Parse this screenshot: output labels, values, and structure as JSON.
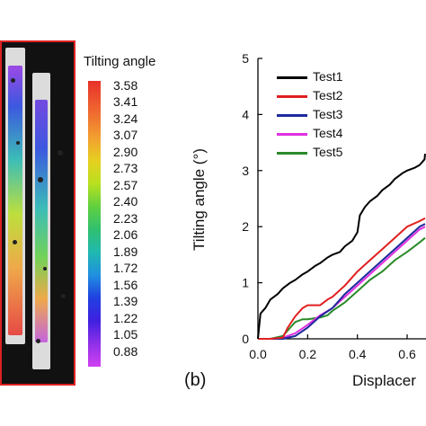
{
  "panel_a": {
    "legend_title": "Tilting angle",
    "colorbar_values": [
      "3.58",
      "3.41",
      "3.24",
      "3.07",
      "2.90",
      "2.73",
      "2.57",
      "2.40",
      "2.23",
      "2.06",
      "1.89",
      "1.72",
      "1.56",
      "1.39",
      "1.22",
      "1.05",
      "0.88"
    ]
  },
  "panel_b_label": "(b)",
  "chart_data": {
    "type": "line",
    "xlabel": "Displacer",
    "ylabel": "Tilting angle (°)",
    "xlim": [
      0.0,
      0.7
    ],
    "ylim": [
      0,
      5
    ],
    "xticks": [
      "0.0",
      "0.2",
      "0.4",
      "0.6"
    ],
    "yticks": [
      "0",
      "1",
      "2",
      "3",
      "4",
      "5"
    ],
    "legend_position": "top-left",
    "series": [
      {
        "name": "Test1",
        "color": "#000000",
        "x": [
          0.0,
          0.01,
          0.03,
          0.05,
          0.08,
          0.1,
          0.13,
          0.15,
          0.18,
          0.2,
          0.23,
          0.25,
          0.28,
          0.3,
          0.33,
          0.35,
          0.38,
          0.4,
          0.41,
          0.43,
          0.45,
          0.48,
          0.5,
          0.53,
          0.55,
          0.58,
          0.6,
          0.63,
          0.65,
          0.67,
          0.7
        ],
        "y": [
          0.0,
          0.45,
          0.55,
          0.7,
          0.8,
          0.9,
          1.0,
          1.05,
          1.15,
          1.2,
          1.3,
          1.35,
          1.45,
          1.5,
          1.55,
          1.65,
          1.75,
          1.9,
          2.2,
          2.35,
          2.45,
          2.55,
          2.65,
          2.75,
          2.85,
          2.95,
          3.0,
          3.05,
          3.1,
          3.2,
          3.3
        ]
      },
      {
        "name": "Test2",
        "color": "#e02020",
        "x": [
          0.0,
          0.05,
          0.1,
          0.12,
          0.15,
          0.18,
          0.2,
          0.25,
          0.28,
          0.3,
          0.35,
          0.4,
          0.45,
          0.5,
          0.55,
          0.6,
          0.65,
          0.7
        ],
        "y": [
          0.0,
          0.0,
          0.02,
          0.2,
          0.4,
          0.55,
          0.6,
          0.6,
          0.7,
          0.75,
          0.95,
          1.2,
          1.4,
          1.6,
          1.8,
          2.0,
          2.1,
          2.15
        ]
      },
      {
        "name": "Test3",
        "color": "#1c2a9c",
        "x": [
          0.0,
          0.05,
          0.1,
          0.15,
          0.2,
          0.25,
          0.3,
          0.35,
          0.4,
          0.45,
          0.5,
          0.55,
          0.6,
          0.65,
          0.7
        ],
        "y": [
          0.0,
          0.0,
          0.0,
          0.05,
          0.2,
          0.4,
          0.55,
          0.8,
          1.0,
          1.2,
          1.4,
          1.6,
          1.8,
          2.0,
          2.05
        ]
      },
      {
        "name": "Test4",
        "color": "#e030e0",
        "x": [
          0.0,
          0.05,
          0.1,
          0.15,
          0.2,
          0.25,
          0.3,
          0.35,
          0.4,
          0.45,
          0.5,
          0.55,
          0.6,
          0.65,
          0.7
        ],
        "y": [
          0.0,
          0.0,
          0.02,
          0.1,
          0.25,
          0.42,
          0.55,
          0.75,
          0.95,
          1.15,
          1.35,
          1.55,
          1.75,
          1.95,
          2.0
        ]
      },
      {
        "name": "Test5",
        "color": "#2a8a2a",
        "x": [
          0.0,
          0.05,
          0.1,
          0.13,
          0.15,
          0.18,
          0.2,
          0.25,
          0.28,
          0.3,
          0.35,
          0.4,
          0.45,
          0.5,
          0.55,
          0.6,
          0.65,
          0.7
        ],
        "y": [
          0.0,
          0.0,
          0.05,
          0.2,
          0.3,
          0.35,
          0.35,
          0.38,
          0.42,
          0.5,
          0.65,
          0.85,
          1.05,
          1.2,
          1.4,
          1.55,
          1.72,
          1.8
        ]
      }
    ]
  }
}
